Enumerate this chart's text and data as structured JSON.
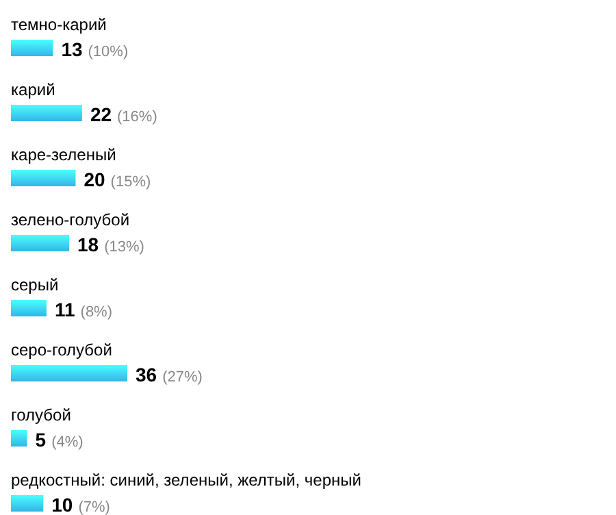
{
  "chart_data": {
    "type": "bar",
    "orientation": "horizontal",
    "categories": [
      "темно-карий",
      "карий",
      "каре-зеленый",
      "зелено-голубой",
      "серый",
      "серо-голубой",
      "голубой",
      "редкостный: синий, зеленый, желтый, черный"
    ],
    "values": [
      13,
      22,
      20,
      18,
      11,
      36,
      5,
      10
    ],
    "value_labels": [
      "13 (10%)",
      "22 (16%)",
      "20 (15%)",
      "18 (13%)",
      "11 (8%)",
      "36 (27%)",
      "5 (4%)",
      "10 (7%)"
    ],
    "color": "#33b5e8"
  }
}
